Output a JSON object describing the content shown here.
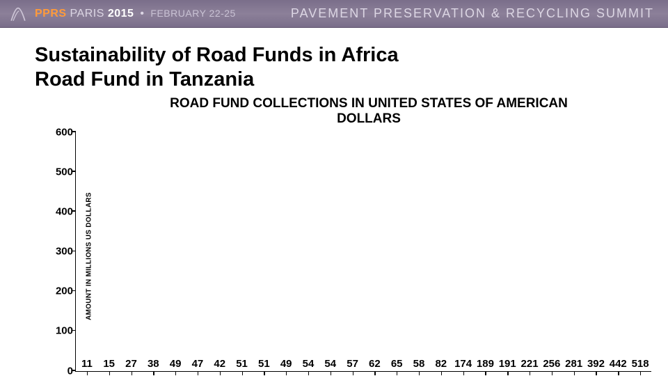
{
  "banner": {
    "pprs": "PPRS",
    "paris": "PARIS",
    "year": "2015",
    "bullet": "•",
    "dates": "FEBRUARY 22-25",
    "summit": "PAVEMENT PRESERVATION & RECYCLING SUMMIT",
    "bg_from": "#7a6e8a",
    "bg_to": "#8c8099",
    "accent": "#ff9a3a"
  },
  "slide": {
    "title_line1": "Sustainability of Road Funds in Africa",
    "title_line2": "Road Fund in Tanzania",
    "chart_title_line1": "ROAD FUND COLLECTIONS IN UNITED STATES OF AMERICAN",
    "chart_title_line2": "DOLLARS"
  },
  "chart": {
    "type": "bar",
    "y_axis_label": "AMOUNT IN MILLIONS US DOLLARS",
    "ylim": [
      0,
      600
    ],
    "ytick_step": 100,
    "yticks": [
      0,
      100,
      200,
      300,
      400,
      500,
      600
    ],
    "bar_blue": "#6fa7d4",
    "bar_green": "#66d11a",
    "background_color": "#ffffff",
    "axis_color": "#000000",
    "value_label_fontsize": 15,
    "bars": [
      {
        "label": 11,
        "color": "blue"
      },
      {
        "label": 15,
        "color": "blue"
      },
      {
        "label": 27,
        "color": "blue"
      },
      {
        "label": 38,
        "color": "blue"
      },
      {
        "label": 49,
        "color": "blue"
      },
      {
        "label": 47,
        "color": "blue",
        "display_label": 47
      },
      {
        "label": 42,
        "color": "blue"
      },
      {
        "label": 51,
        "color": "blue"
      },
      {
        "label": 51,
        "color": "blue"
      },
      {
        "label": 49,
        "color": "blue"
      },
      {
        "label": 54,
        "color": "blue"
      },
      {
        "label": 54,
        "color": "blue"
      },
      {
        "label": 57,
        "color": "blue"
      },
      {
        "label": 62,
        "color": "blue"
      },
      {
        "label": 65,
        "color": "blue"
      },
      {
        "label": 58,
        "color": "blue"
      },
      {
        "label": 82,
        "color": "blue"
      },
      {
        "label": 174,
        "color": "blue"
      },
      {
        "label": 189,
        "color": "blue"
      },
      {
        "label": 191,
        "color": "blue"
      },
      {
        "label": 221,
        "color": "blue"
      },
      {
        "label": 256,
        "color": "blue"
      },
      {
        "label": 281,
        "color": "blue"
      },
      {
        "label": 392,
        "color": "blue"
      },
      {
        "label": 442,
        "color": "green"
      },
      {
        "label": 518,
        "color": "green"
      }
    ]
  }
}
